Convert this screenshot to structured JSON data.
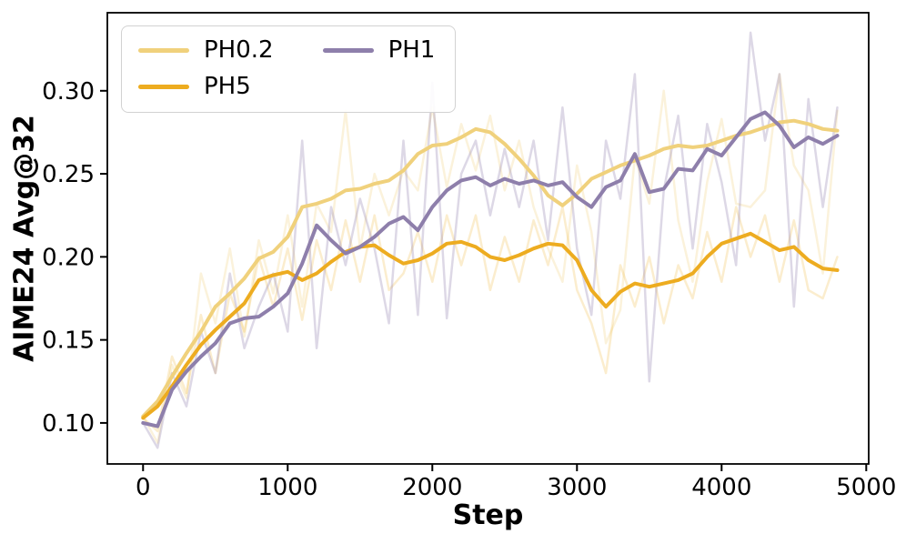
{
  "chart_data": {
    "type": "line",
    "title": "",
    "xlabel": "Step",
    "ylabel": "AIME24 Avg@32",
    "xlim": [
      -247,
      5017
    ],
    "ylim": [
      0.0753,
      0.347
    ],
    "xticks": [
      0,
      1000,
      2000,
      3000,
      4000,
      5000
    ],
    "yticks": [
      0.1,
      0.15,
      0.2,
      0.25,
      0.3
    ],
    "grid": false,
    "legend": {
      "position": "top-left",
      "ncol": 2,
      "entries": [
        "PH0.2",
        "PH5",
        "PH1"
      ]
    },
    "x": [
      0,
      100,
      200,
      300,
      400,
      500,
      600,
      700,
      800,
      900,
      1000,
      1100,
      1200,
      1300,
      1400,
      1500,
      1600,
      1700,
      1800,
      1900,
      2000,
      2100,
      2200,
      2300,
      2400,
      2500,
      2600,
      2700,
      2800,
      2900,
      3000,
      3100,
      3200,
      3300,
      3400,
      3500,
      3600,
      3700,
      3800,
      3900,
      4000,
      4100,
      4200,
      4300,
      4400,
      4500,
      4600,
      4700,
      4800
    ],
    "series": [
      {
        "name": "PH0.2",
        "color": "#F0D17C",
        "raw_opacity": 0.28,
        "smoothed": [
          0.104,
          0.113,
          0.128,
          0.142,
          0.155,
          0.17,
          0.178,
          0.187,
          0.199,
          0.203,
          0.212,
          0.23,
          0.232,
          0.235,
          0.24,
          0.241,
          0.244,
          0.246,
          0.252,
          0.262,
          0.267,
          0.268,
          0.272,
          0.277,
          0.275,
          0.268,
          0.259,
          0.249,
          0.237,
          0.231,
          0.238,
          0.247,
          0.251,
          0.255,
          0.258,
          0.261,
          0.265,
          0.267,
          0.266,
          0.267,
          0.27,
          0.273,
          0.275,
          0.278,
          0.281,
          0.282,
          0.28,
          0.277,
          0.276
        ],
        "raw": [
          0.104,
          0.088,
          0.135,
          0.115,
          0.19,
          0.16,
          0.205,
          0.152,
          0.21,
          0.178,
          0.225,
          0.17,
          0.232,
          0.215,
          0.288,
          0.205,
          0.25,
          0.225,
          0.252,
          0.24,
          0.29,
          0.242,
          0.28,
          0.252,
          0.285,
          0.24,
          0.27,
          0.23,
          0.205,
          0.185,
          0.255,
          0.215,
          0.148,
          0.168,
          0.26,
          0.232,
          0.3,
          0.222,
          0.185,
          0.245,
          0.283,
          0.232,
          0.23,
          0.24,
          0.31,
          0.255,
          0.24,
          0.19,
          0.288
        ]
      },
      {
        "name": "PH5",
        "color": "#EDAC20",
        "raw_opacity": 0.22,
        "smoothed": [
          0.103,
          0.11,
          0.122,
          0.135,
          0.147,
          0.156,
          0.164,
          0.172,
          0.186,
          0.189,
          0.191,
          0.186,
          0.19,
          0.197,
          0.203,
          0.206,
          0.207,
          0.201,
          0.196,
          0.198,
          0.202,
          0.208,
          0.209,
          0.206,
          0.2,
          0.198,
          0.201,
          0.205,
          0.208,
          0.207,
          0.198,
          0.18,
          0.17,
          0.179,
          0.184,
          0.182,
          0.184,
          0.186,
          0.19,
          0.2,
          0.208,
          0.211,
          0.214,
          0.209,
          0.204,
          0.206,
          0.198,
          0.193,
          0.192
        ],
        "raw": [
          0.103,
          0.095,
          0.14,
          0.118,
          0.165,
          0.13,
          0.178,
          0.155,
          0.2,
          0.17,
          0.205,
          0.162,
          0.21,
          0.18,
          0.222,
          0.185,
          0.225,
          0.18,
          0.19,
          0.215,
          0.185,
          0.225,
          0.195,
          0.225,
          0.18,
          0.212,
          0.185,
          0.222,
          0.195,
          0.23,
          0.18,
          0.16,
          0.13,
          0.195,
          0.17,
          0.2,
          0.16,
          0.195,
          0.175,
          0.215,
          0.185,
          0.23,
          0.2,
          0.225,
          0.185,
          0.222,
          0.18,
          0.175,
          0.2
        ]
      },
      {
        "name": "PH1",
        "color": "#8E7FAB",
        "raw_opacity": 0.3,
        "smoothed": [
          0.1,
          0.098,
          0.12,
          0.131,
          0.14,
          0.148,
          0.16,
          0.163,
          0.164,
          0.17,
          0.178,
          0.196,
          0.219,
          0.21,
          0.202,
          0.206,
          0.212,
          0.22,
          0.224,
          0.216,
          0.23,
          0.24,
          0.246,
          0.248,
          0.243,
          0.247,
          0.244,
          0.246,
          0.243,
          0.245,
          0.236,
          0.23,
          0.242,
          0.246,
          0.262,
          0.239,
          0.241,
          0.253,
          0.252,
          0.265,
          0.261,
          0.272,
          0.283,
          0.287,
          0.279,
          0.266,
          0.272,
          0.268,
          0.273
        ],
        "raw": [
          0.1,
          0.085,
          0.13,
          0.11,
          0.155,
          0.13,
          0.19,
          0.145,
          0.17,
          0.19,
          0.155,
          0.27,
          0.145,
          0.23,
          0.195,
          0.235,
          0.205,
          0.16,
          0.27,
          0.165,
          0.305,
          0.163,
          0.25,
          0.27,
          0.225,
          0.265,
          0.23,
          0.27,
          0.21,
          0.29,
          0.205,
          0.165,
          0.27,
          0.235,
          0.31,
          0.125,
          0.24,
          0.285,
          0.205,
          0.28,
          0.245,
          0.195,
          0.335,
          0.27,
          0.31,
          0.17,
          0.295,
          0.23,
          0.29
        ]
      }
    ]
  }
}
